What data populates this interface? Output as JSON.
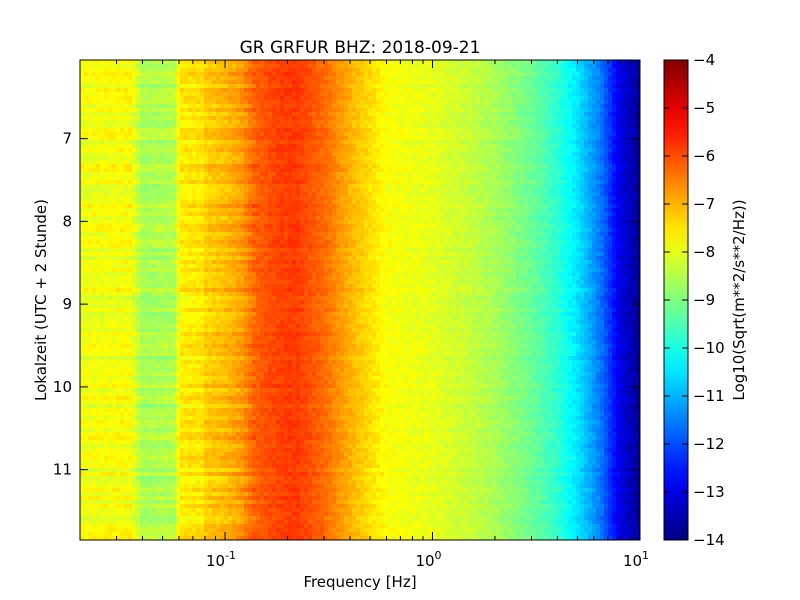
{
  "chart_data": {
    "type": "heatmap",
    "title": "GR GRFUR BHZ: 2018-09-21",
    "xlabel": "Frequency [Hz]",
    "ylabel": "Lokalzeit (UTC + 2 Stunde)",
    "x_scale": "log",
    "xlim": [
      0.02,
      10
    ],
    "ylim": [
      6.05,
      11.85
    ],
    "y_inverted": true,
    "x_ticks": [
      {
        "value": 0.1,
        "base": "10",
        "exp": "-1"
      },
      {
        "value": 1,
        "base": "10",
        "exp": "0"
      },
      {
        "value": 10,
        "base": "10",
        "exp": "1"
      }
    ],
    "y_ticks": [
      {
        "value": 7,
        "label": "7"
      },
      {
        "value": 8,
        "label": "8"
      },
      {
        "value": 9,
        "label": "9"
      },
      {
        "value": 10,
        "label": "10"
      },
      {
        "value": 11,
        "label": "11"
      }
    ],
    "colormap": "jet",
    "colorbar": {
      "label": "Log10(Sqrt(m**2/s**2/Hz))",
      "range": [
        -14,
        -4
      ],
      "ticks": [
        {
          "value": -4,
          "label": "−4"
        },
        {
          "value": -5,
          "label": "−5"
        },
        {
          "value": -6,
          "label": "−6"
        },
        {
          "value": -7,
          "label": "−7"
        },
        {
          "value": -8,
          "label": "−8"
        },
        {
          "value": -9,
          "label": "−9"
        },
        {
          "value": -10,
          "label": "−10"
        },
        {
          "value": -11,
          "label": "−11"
        },
        {
          "value": -12,
          "label": "−12"
        },
        {
          "value": -13,
          "label": "−13"
        },
        {
          "value": -14,
          "label": "−14"
        }
      ]
    },
    "frequency_profile": [
      {
        "f": 0.02,
        "value": -7.9
      },
      {
        "f": 0.035,
        "value": -7.8
      },
      {
        "f": 0.04,
        "value": -8.6
      },
      {
        "f": 0.058,
        "value": -8.5
      },
      {
        "f": 0.06,
        "value": -7.6
      },
      {
        "f": 0.078,
        "value": -7.5
      },
      {
        "f": 0.08,
        "value": -7.3
      },
      {
        "f": 0.1,
        "value": -7.1
      },
      {
        "f": 0.12,
        "value": -6.8
      },
      {
        "f": 0.14,
        "value": -6.2
      },
      {
        "f": 0.18,
        "value": -5.9
      },
      {
        "f": 0.22,
        "value": -5.8
      },
      {
        "f": 0.3,
        "value": -6.3
      },
      {
        "f": 0.4,
        "value": -7.0
      },
      {
        "f": 0.6,
        "value": -7.8
      },
      {
        "f": 1.0,
        "value": -8.0
      },
      {
        "f": 1.5,
        "value": -8.3
      },
      {
        "f": 2.0,
        "value": -8.6
      },
      {
        "f": 3.0,
        "value": -9.2
      },
      {
        "f": 4.0,
        "value": -9.8
      },
      {
        "f": 5.0,
        "value": -10.5
      },
      {
        "f": 6.5,
        "value": -11.6
      },
      {
        "f": 8.0,
        "value": -13.0
      },
      {
        "f": 10.0,
        "value": -13.8
      }
    ],
    "grid": false,
    "legend": "colorbar-right"
  }
}
